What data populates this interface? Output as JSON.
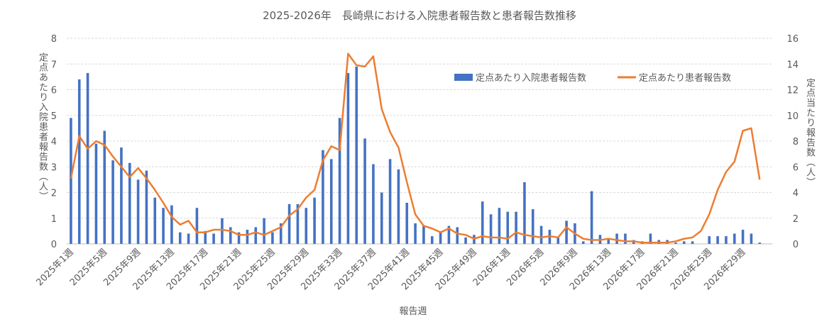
{
  "chart_data": {
    "type": "bar",
    "title": "2025-2026年　長崎県における入院患者報告数と患者報告数推移",
    "xlabel": "報告週",
    "ylabel": "定点あたり入院患者報告数（人）",
    "ylabel_right": "定点当たり報告数（人）",
    "ylim": [
      0,
      8
    ],
    "ylim_right": [
      0,
      16
    ],
    "yticks": [
      "0",
      "1",
      "2",
      "3",
      "4",
      "5",
      "6",
      "7",
      "8"
    ],
    "yticks_right": [
      "0",
      "2",
      "4",
      "6",
      "8",
      "10",
      "12",
      "14",
      "16"
    ],
    "grid": true,
    "legend_position": "top-right",
    "categories": [
      "2025年1週",
      "2025年2週",
      "2025年3週",
      "2025年4週",
      "2025年5週",
      "2025年6週",
      "2025年7週",
      "2025年8週",
      "2025年9週",
      "2025年10週",
      "2025年11週",
      "2025年12週",
      "2025年13週",
      "2025年14週",
      "2025年15週",
      "2025年16週",
      "2025年17週",
      "2025年18週",
      "2025年19週",
      "2025年20週",
      "2025年21週",
      "2025年22週",
      "2025年23週",
      "2025年24週",
      "2025年25週",
      "2025年26週",
      "2025年27週",
      "2025年28週",
      "2025年29週",
      "2025年30週",
      "2025年31週",
      "2025年32週",
      "2025年33週",
      "2025年34週",
      "2025年35週",
      "2025年36週",
      "2025年37週",
      "2025年38週",
      "2025年39週",
      "2025年40週",
      "2025年41週",
      "2025年42週",
      "2025年43週",
      "2025年44週",
      "2025年45週",
      "2025年46週",
      "2025年47週",
      "2025年48週",
      "2025年49週",
      "2025年50週",
      "2025年51週",
      "2025年52週",
      "2026年1週",
      "2026年2週",
      "2026年3週",
      "2026年4週",
      "2026年5週",
      "2026年6週",
      "2026年7週",
      "2026年8週",
      "2026年9週",
      "2026年10週",
      "2026年11週",
      "2026年12週",
      "2026年13週",
      "2026年14週",
      "2026年15週",
      "2026年16週",
      "2026年17週",
      "2026年18週",
      "2026年19週",
      "2026年20週",
      "2026年21週",
      "2026年22週",
      "2026年23週",
      "2026年24週",
      "2026年25週",
      "2026年26週",
      "2026年27週",
      "2026年28週",
      "2026年29週",
      "2026年30週",
      "2026年31週",
      "2026年32週"
    ],
    "tick_labels": [
      "2025年1週",
      "2025年5週",
      "2025年9週",
      "2025年13週",
      "2025年17週",
      "2025年21週",
      "2025年25週",
      "2025年29週",
      "2025年33週",
      "2025年37週",
      "2025年41週",
      "2025年45週",
      "2025年49週",
      "2026年1週",
      "2026年5週",
      "2026年9週",
      "2026年13週",
      "2026年17週",
      "2026年21週",
      "2026年25週",
      "2026年29週"
    ],
    "series": [
      {
        "name": "定点あたり入院患者報告数",
        "type": "bar",
        "axis": "left",
        "color": "#4472C4",
        "values": [
          4.9,
          6.4,
          6.65,
          3.9,
          4.4,
          3.25,
          3.75,
          3.15,
          2.5,
          2.85,
          1.8,
          1.4,
          1.5,
          0.45,
          0.4,
          1.4,
          0.5,
          0.4,
          1.0,
          0.65,
          0.45,
          0.55,
          0.65,
          1.0,
          0.45,
          0.8,
          1.55,
          1.55,
          1.4,
          1.8,
          3.65,
          3.3,
          4.9,
          6.65,
          6.9,
          4.1,
          3.1,
          2.0,
          3.3,
          2.9,
          1.6,
          0.8,
          0.7,
          0.3,
          0.45,
          0.7,
          0.65,
          0.25,
          0.35,
          1.65,
          1.15,
          1.4,
          1.25,
          1.25,
          2.4,
          1.35,
          0.7,
          0.55,
          0.25,
          0.9,
          0.8,
          0.1,
          2.05,
          0.35,
          0.2,
          0.4,
          0.4,
          0.15,
          0.1,
          0.4,
          0.15,
          0.15,
          0.05,
          0.1,
          0.1,
          0.0,
          0.3,
          0.3,
          0.3,
          0.4,
          0.55,
          0.4,
          0.05,
          0.0
        ]
      },
      {
        "name": "定点あたり患者報告数",
        "type": "line",
        "axis": "right",
        "color": "#ED7D31",
        "values": [
          5.1,
          8.4,
          7.4,
          8.0,
          7.7,
          6.8,
          6.0,
          5.2,
          5.9,
          5.1,
          4.2,
          3.2,
          2.1,
          1.5,
          1.8,
          0.9,
          0.9,
          1.1,
          1.1,
          1.0,
          0.7,
          0.7,
          0.9,
          0.7,
          1.0,
          1.3,
          2.2,
          2.7,
          3.6,
          4.2,
          6.5,
          7.6,
          7.3,
          14.8,
          13.9,
          13.8,
          14.6,
          10.5,
          8.7,
          7.5,
          4.8,
          2.3,
          1.4,
          1.2,
          0.9,
          1.2,
          0.8,
          0.7,
          0.4,
          0.6,
          0.5,
          0.5,
          0.4,
          0.9,
          0.7,
          0.6,
          0.5,
          0.6,
          0.5,
          1.3,
          0.8,
          0.4,
          0.3,
          0.3,
          0.4,
          0.3,
          0.2,
          0.2,
          0.1,
          0.1,
          0.1,
          0.1,
          0.2,
          0.4,
          0.5,
          1.0,
          2.3,
          4.2,
          5.6,
          6.4,
          8.8,
          9.0,
          5.0,
          5.0
        ]
      }
    ]
  }
}
